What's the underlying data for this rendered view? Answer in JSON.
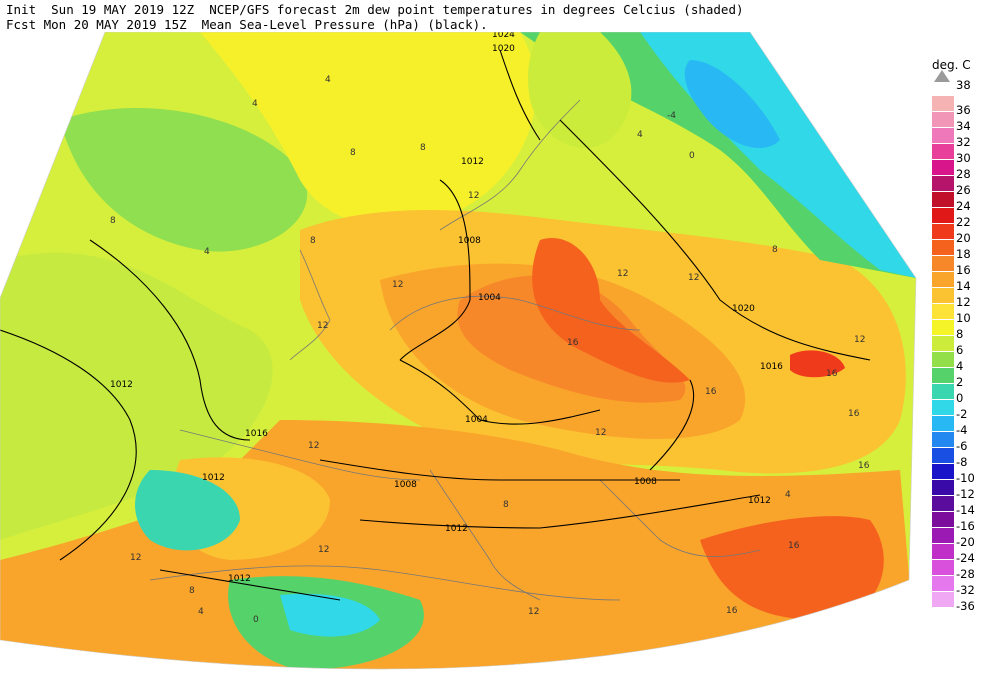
{
  "header": {
    "line1": "Init  Sun 19 MAY 2019 12Z  NCEP/GFS forecast 2m dew point temperatures in degrees Celcius (shaded)",
    "line2": "Fcst Mon 20 MAY 2019 15Z  Mean Sea-Level Pressure (hPa) (black)."
  },
  "legend": {
    "title": "deg. C",
    "top_label": "38",
    "items": [
      {
        "label": "36",
        "color": "#f6b3b3"
      },
      {
        "label": "34",
        "color": "#f296b8"
      },
      {
        "label": "32",
        "color": "#ee78b9"
      },
      {
        "label": "30",
        "color": "#e8409a"
      },
      {
        "label": "28",
        "color": "#d8158a"
      },
      {
        "label": "26",
        "color": "#b5146a"
      },
      {
        "label": "24",
        "color": "#c0102a"
      },
      {
        "label": "22",
        "color": "#e01818"
      },
      {
        "label": "20",
        "color": "#f03a1c"
      },
      {
        "label": "18",
        "color": "#f5621e"
      },
      {
        "label": "16",
        "color": "#f7882a"
      },
      {
        "label": "14",
        "color": "#f9a52c"
      },
      {
        "label": "12",
        "color": "#fbc232"
      },
      {
        "label": "10",
        "color": "#fde238"
      },
      {
        "label": "8",
        "color": "#f4f428"
      },
      {
        "label": "6",
        "color": "#cbec3a"
      },
      {
        "label": "4",
        "color": "#93df49"
      },
      {
        "label": "2",
        "color": "#55d26a"
      },
      {
        "label": "0",
        "color": "#3ad6b0"
      },
      {
        "label": "-2",
        "color": "#30d8e8"
      },
      {
        "label": "-4",
        "color": "#28b8f4"
      },
      {
        "label": "-6",
        "color": "#2388f0"
      },
      {
        "label": "-8",
        "color": "#1a4fe4"
      },
      {
        "label": "-10",
        "color": "#1a14c8"
      },
      {
        "label": "-12",
        "color": "#3a0aa8"
      },
      {
        "label": "-14",
        "color": "#5a0c9c"
      },
      {
        "label": "-16",
        "color": "#7c0c9c"
      },
      {
        "label": "-20",
        "color": "#9c1ab4"
      },
      {
        "label": "-24",
        "color": "#c030c8"
      },
      {
        "label": "-28",
        "color": "#d850dc"
      },
      {
        "label": "-32",
        "color": "#e478ec"
      },
      {
        "label": "-36",
        "color": "#f0a8f4"
      }
    ]
  },
  "isobar_labels": [
    "1024",
    "1020",
    "1012",
    "1008",
    "1004",
    "1012",
    "1016",
    "1012",
    "1008",
    "1004",
    "1008",
    "1012",
    "1012",
    "1016",
    "1020",
    "1012"
  ],
  "dewpoint_labels": [
    "4",
    "4",
    "8",
    "8",
    "8",
    "8",
    "4",
    "12",
    "12",
    "12",
    "12",
    "12",
    "12",
    "16",
    "16",
    "16",
    "16",
    "16",
    "12",
    "12",
    "8",
    "4",
    "0",
    "-4",
    "4",
    "0",
    "8",
    "12",
    "12",
    "16",
    "16",
    "4",
    "8",
    "12"
  ]
}
